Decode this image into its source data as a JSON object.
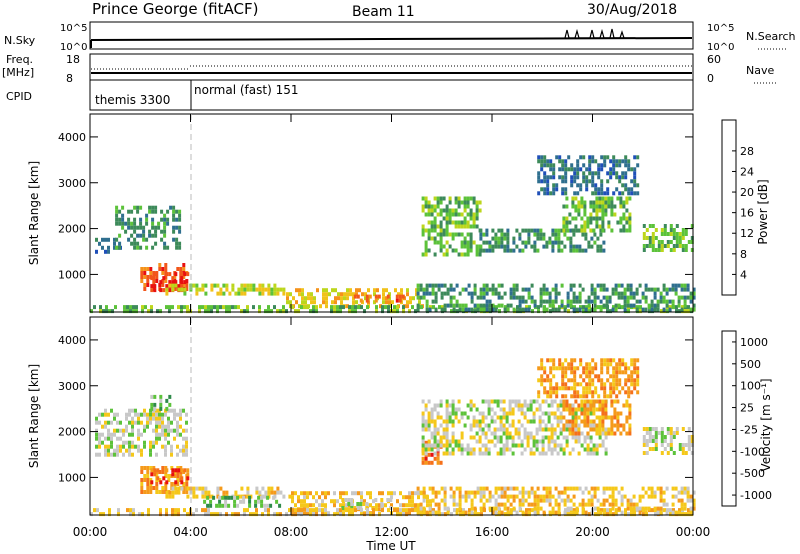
{
  "header": {
    "title": "Prince George (fitACF)",
    "beam": "Beam 11",
    "date": "30/Aug/2018"
  },
  "panels": {
    "nsky": {
      "left_label": "N.Sky",
      "left_ticks": [
        "10^5",
        "10^0"
      ],
      "right_ticks": [
        "10^5",
        "10^0"
      ],
      "right_label": "N.Search"
    },
    "freq": {
      "left_label": "Freq.",
      "left_unit": "[MHz]",
      "left_ticks": [
        "18",
        "8"
      ],
      "right_ticks": [
        "60",
        "0"
      ],
      "right_label": "Nave"
    },
    "cpid": {
      "label": "CPID",
      "modes": [
        {
          "name": "themis 3300",
          "start_hour": 0
        },
        {
          "name": "normal (fast) 151",
          "start_hour": 4
        }
      ]
    }
  },
  "chart_data": [
    {
      "type": "heatmap",
      "name": "power",
      "ylabel": "Slant Range [km]",
      "yticks": [
        "1000",
        "2000",
        "3000",
        "4000"
      ],
      "ylim": [
        180,
        4500
      ],
      "xlabel": "Time UT",
      "xticks": [
        "00:00",
        "04:00",
        "08:00",
        "12:00",
        "16:00",
        "20:00",
        "00:00"
      ],
      "xlim_hours": [
        0,
        24
      ],
      "colorbar": {
        "label": "Power [dB]",
        "ticks": [
          "4",
          "8",
          "12",
          "16",
          "20",
          "24",
          "28"
        ],
        "colors": [
          "#1a1aff",
          "#1f4fb8",
          "#2f6f8f",
          "#3d8a5a",
          "#5cc23a",
          "#bcd61c",
          "#f0c21a",
          "#f5921a",
          "#f2561a",
          "#e81010"
        ]
      },
      "regions": [
        {
          "t0": 0.2,
          "t1": 1.2,
          "r0": 1500,
          "r1": 1800,
          "level": 2
        },
        {
          "t0": 1.0,
          "t1": 3.6,
          "r0": 1600,
          "r1": 2500,
          "level": 3
        },
        {
          "t0": 2.0,
          "t1": 3.9,
          "r0": 700,
          "r1": 1250,
          "level": 8
        },
        {
          "t0": 2.4,
          "t1": 3.9,
          "r0": 650,
          "r1": 1050,
          "level": 9
        },
        {
          "t0": 3.0,
          "t1": 7.8,
          "r0": 550,
          "r1": 800,
          "level": 5
        },
        {
          "t0": 7.8,
          "t1": 13.2,
          "r0": 350,
          "r1": 700,
          "level": 6
        },
        {
          "t0": 10.5,
          "t1": 12.5,
          "r0": 420,
          "r1": 560,
          "level": 8
        },
        {
          "t0": 0.0,
          "t1": 24.0,
          "r0": 190,
          "r1": 330,
          "level": 4
        },
        {
          "t0": 13.2,
          "t1": 15.5,
          "r0": 1400,
          "r1": 2700,
          "level": 4
        },
        {
          "t0": 15.5,
          "t1": 20.5,
          "r0": 1500,
          "r1": 2000,
          "level": 3
        },
        {
          "t0": 18.8,
          "t1": 21.5,
          "r0": 2000,
          "r1": 2700,
          "level": 4
        },
        {
          "t0": 22.0,
          "t1": 24.0,
          "r0": 1500,
          "r1": 2100,
          "level": 4
        },
        {
          "t0": 17.8,
          "t1": 21.8,
          "r0": 2800,
          "r1": 3600,
          "level": 2
        },
        {
          "t0": 13.0,
          "t1": 24.0,
          "r0": 190,
          "r1": 800,
          "level": 3
        }
      ]
    },
    {
      "type": "heatmap",
      "name": "velocity",
      "ylabel": "Slant Range [km]",
      "yticks": [
        "1000",
        "2000",
        "3000",
        "4000"
      ],
      "ylim": [
        180,
        4500
      ],
      "xlabel": "Time UT",
      "xticks": [
        "00:00",
        "04:00",
        "08:00",
        "12:00",
        "16:00",
        "20:00",
        "00:00"
      ],
      "xlim_hours": [
        0,
        24
      ],
      "colorbar": {
        "label": "Velocity [m s⁻¹]",
        "ticks": [
          "1000",
          "500",
          "100",
          "25",
          "-25",
          "-100",
          "-500",
          "-1000"
        ],
        "colors": [
          "#2a3dbf",
          "#2f5fa8",
          "#2f8a4a",
          "#5cc23a",
          "#c8c8c8",
          "#f5c81a",
          "#f59a1a",
          "#f5701a",
          "#e81010"
        ]
      },
      "regions": [
        {
          "t0": 0.2,
          "t1": 3.8,
          "r0": 1500,
          "r1": 2500,
          "level": 4
        },
        {
          "t0": 2.4,
          "t1": 3.2,
          "r0": 2500,
          "r1": 2800,
          "level": 3
        },
        {
          "t0": 2.0,
          "t1": 3.9,
          "r0": 700,
          "r1": 1250,
          "level": 6
        },
        {
          "t0": 2.4,
          "t1": 3.9,
          "r0": 900,
          "r1": 1200,
          "level": 7
        },
        {
          "t0": 3.0,
          "t1": 8.0,
          "r0": 550,
          "r1": 800,
          "level": 5
        },
        {
          "t0": 4.5,
          "t1": 7.5,
          "r0": 400,
          "r1": 600,
          "level": 3
        },
        {
          "t0": 8.0,
          "t1": 13.5,
          "r0": 250,
          "r1": 700,
          "level": 5
        },
        {
          "t0": 10.0,
          "t1": 12.0,
          "r0": 300,
          "r1": 550,
          "level": 4
        },
        {
          "t0": 0.0,
          "t1": 24.0,
          "r0": 190,
          "r1": 330,
          "level": 5
        },
        {
          "t0": 13.2,
          "t1": 14.0,
          "r0": 1300,
          "r1": 1800,
          "level": 7
        },
        {
          "t0": 13.2,
          "t1": 20.5,
          "r0": 1500,
          "r1": 2700,
          "level": 4
        },
        {
          "t0": 18.8,
          "t1": 21.5,
          "r0": 2000,
          "r1": 2700,
          "level": 6
        },
        {
          "t0": 22.0,
          "t1": 24.0,
          "r0": 1500,
          "r1": 2100,
          "level": 4
        },
        {
          "t0": 17.8,
          "t1": 21.8,
          "r0": 2800,
          "r1": 3600,
          "level": 6
        },
        {
          "t0": 13.0,
          "t1": 24.0,
          "r0": 190,
          "r1": 800,
          "level": 5
        }
      ]
    }
  ]
}
